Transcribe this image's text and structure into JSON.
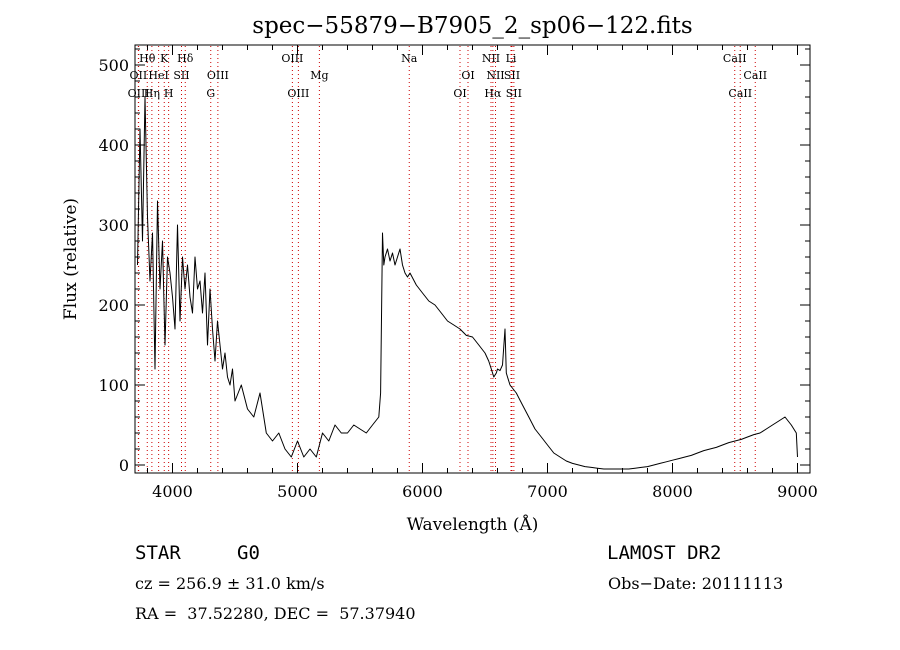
{
  "chart_data": {
    "type": "line",
    "title": "spec−55879−B7905_2_sp06−122.fits",
    "xlabel": "Wavelength (Å)",
    "ylabel": "Flux (relative)",
    "xlim": [
      3700,
      9100
    ],
    "ylim": [
      -10,
      525
    ],
    "xticks": [
      4000,
      5000,
      6000,
      7000,
      8000,
      9000
    ],
    "yticks": [
      0,
      100,
      200,
      300,
      400,
      500
    ],
    "grid": false,
    "series": [
      {
        "name": "flux",
        "x": [
          3720,
          3740,
          3760,
          3780,
          3800,
          3820,
          3840,
          3860,
          3880,
          3900,
          3920,
          3940,
          3960,
          3980,
          4000,
          4020,
          4040,
          4060,
          4080,
          4100,
          4120,
          4140,
          4160,
          4180,
          4200,
          4220,
          4240,
          4260,
          4280,
          4300,
          4320,
          4340,
          4360,
          4380,
          4400,
          4420,
          4440,
          4460,
          4480,
          4500,
          4550,
          4600,
          4650,
          4700,
          4750,
          4800,
          4850,
          4900,
          4950,
          5000,
          5050,
          5100,
          5150,
          5200,
          5250,
          5300,
          5350,
          5400,
          5450,
          5500,
          5550,
          5600,
          5650,
          5665,
          5680,
          5690,
          5700,
          5720,
          5740,
          5760,
          5780,
          5800,
          5820,
          5840,
          5860,
          5880,
          5900,
          5950,
          6000,
          6050,
          6100,
          6150,
          6200,
          6250,
          6300,
          6350,
          6400,
          6450,
          6500,
          6530,
          6550,
          6570,
          6590,
          6600,
          6620,
          6640,
          6660,
          6670,
          6680,
          6700,
          6750,
          6800,
          6850,
          6900,
          6950,
          7000,
          7050,
          7100,
          7150,
          7200,
          7250,
          7300,
          7350,
          7400,
          7450,
          7500,
          7550,
          7600,
          7650,
          7700,
          7750,
          7800,
          7850,
          7900,
          7950,
          8000,
          8050,
          8100,
          8150,
          8200,
          8250,
          8300,
          8350,
          8400,
          8450,
          8500,
          8550,
          8600,
          8650,
          8700,
          8750,
          8800,
          8850,
          8900,
          8950,
          8990,
          9000
        ],
        "y": [
          250,
          420,
          280,
          460,
          310,
          230,
          290,
          120,
          330,
          220,
          280,
          150,
          260,
          240,
          210,
          170,
          300,
          180,
          260,
          220,
          250,
          210,
          190,
          260,
          220,
          230,
          190,
          240,
          150,
          220,
          170,
          130,
          180,
          150,
          120,
          140,
          110,
          100,
          120,
          80,
          100,
          70,
          60,
          90,
          40,
          30,
          40,
          20,
          10,
          30,
          10,
          20,
          10,
          40,
          30,
          50,
          40,
          40,
          50,
          45,
          40,
          50,
          60,
          90,
          290,
          250,
          260,
          270,
          255,
          265,
          250,
          260,
          270,
          250,
          240,
          235,
          240,
          225,
          215,
          205,
          200,
          190,
          180,
          175,
          170,
          162,
          160,
          150,
          140,
          130,
          120,
          110,
          115,
          120,
          118,
          125,
          170,
          115,
          110,
          100,
          90,
          75,
          60,
          45,
          35,
          25,
          15,
          10,
          5,
          2,
          0,
          -2,
          -3,
          -4,
          -5,
          -5,
          -5,
          -5,
          -5,
          -4,
          -3,
          -2,
          0,
          2,
          4,
          6,
          8,
          10,
          12,
          15,
          18,
          20,
          22,
          25,
          28,
          30,
          32,
          35,
          38,
          40,
          45,
          50,
          55,
          60,
          50,
          40,
          10
        ]
      }
    ],
    "lines": [
      {
        "label": "Hθ",
        "wavelength": 3798,
        "row": 1
      },
      {
        "label": "OII",
        "wavelength": 3727,
        "row": 2
      },
      {
        "label": "OIII",
        "wavelength": 3729,
        "row": 3
      },
      {
        "label": "K",
        "wavelength": 3934,
        "row": 1
      },
      {
        "label": "HeI",
        "wavelength": 3889,
        "row": 2
      },
      {
        "label": "Hη",
        "wavelength": 3835,
        "row": 3
      },
      {
        "label": "Hδ",
        "wavelength": 4102,
        "row": 1
      },
      {
        "label": "SII",
        "wavelength": 4072,
        "row": 2
      },
      {
        "label": "H",
        "wavelength": 3969,
        "row": 3
      },
      {
        "label": "OIII",
        "wavelength": 4363,
        "row": 2
      },
      {
        "label": "G",
        "wavelength": 4306,
        "row": 3
      },
      {
        "label": "OIII",
        "wavelength": 4959,
        "row": 1
      },
      {
        "label": "Mg",
        "wavelength": 5175,
        "row": 2
      },
      {
        "label": "OIII",
        "wavelength": 5007,
        "row": 3
      },
      {
        "label": "Na",
        "wavelength": 5894,
        "row": 1
      },
      {
        "label": "OI",
        "wavelength": 6364,
        "row": 2
      },
      {
        "label": "OI",
        "wavelength": 6300,
        "row": 3
      },
      {
        "label": "NII",
        "wavelength": 6548,
        "row": 1
      },
      {
        "label": "NII",
        "wavelength": 6584,
        "row": 2
      },
      {
        "label": "Hα",
        "wavelength": 6563,
        "row": 3
      },
      {
        "label": "Li",
        "wavelength": 6708,
        "row": 1
      },
      {
        "label": "SII",
        "wavelength": 6716,
        "row": 2
      },
      {
        "label": "SII",
        "wavelength": 6731,
        "row": 3
      },
      {
        "label": "CaII",
        "wavelength": 8498,
        "row": 1
      },
      {
        "label": "CaII",
        "wavelength": 8662,
        "row": 2
      },
      {
        "label": "CaII",
        "wavelength": 8542,
        "row": 3
      }
    ]
  },
  "info": {
    "class": "STAR",
    "subclass": "G0",
    "survey": "LAMOST DR2",
    "cz": "cz = 256.9 ± 31.0 km/s",
    "obsdate": "Obs−Date: 20111113",
    "radec": "RA =  37.52280, DEC =  57.37940"
  },
  "colors": {
    "line_marker": "#cc0000",
    "spectrum": "#000000"
  }
}
